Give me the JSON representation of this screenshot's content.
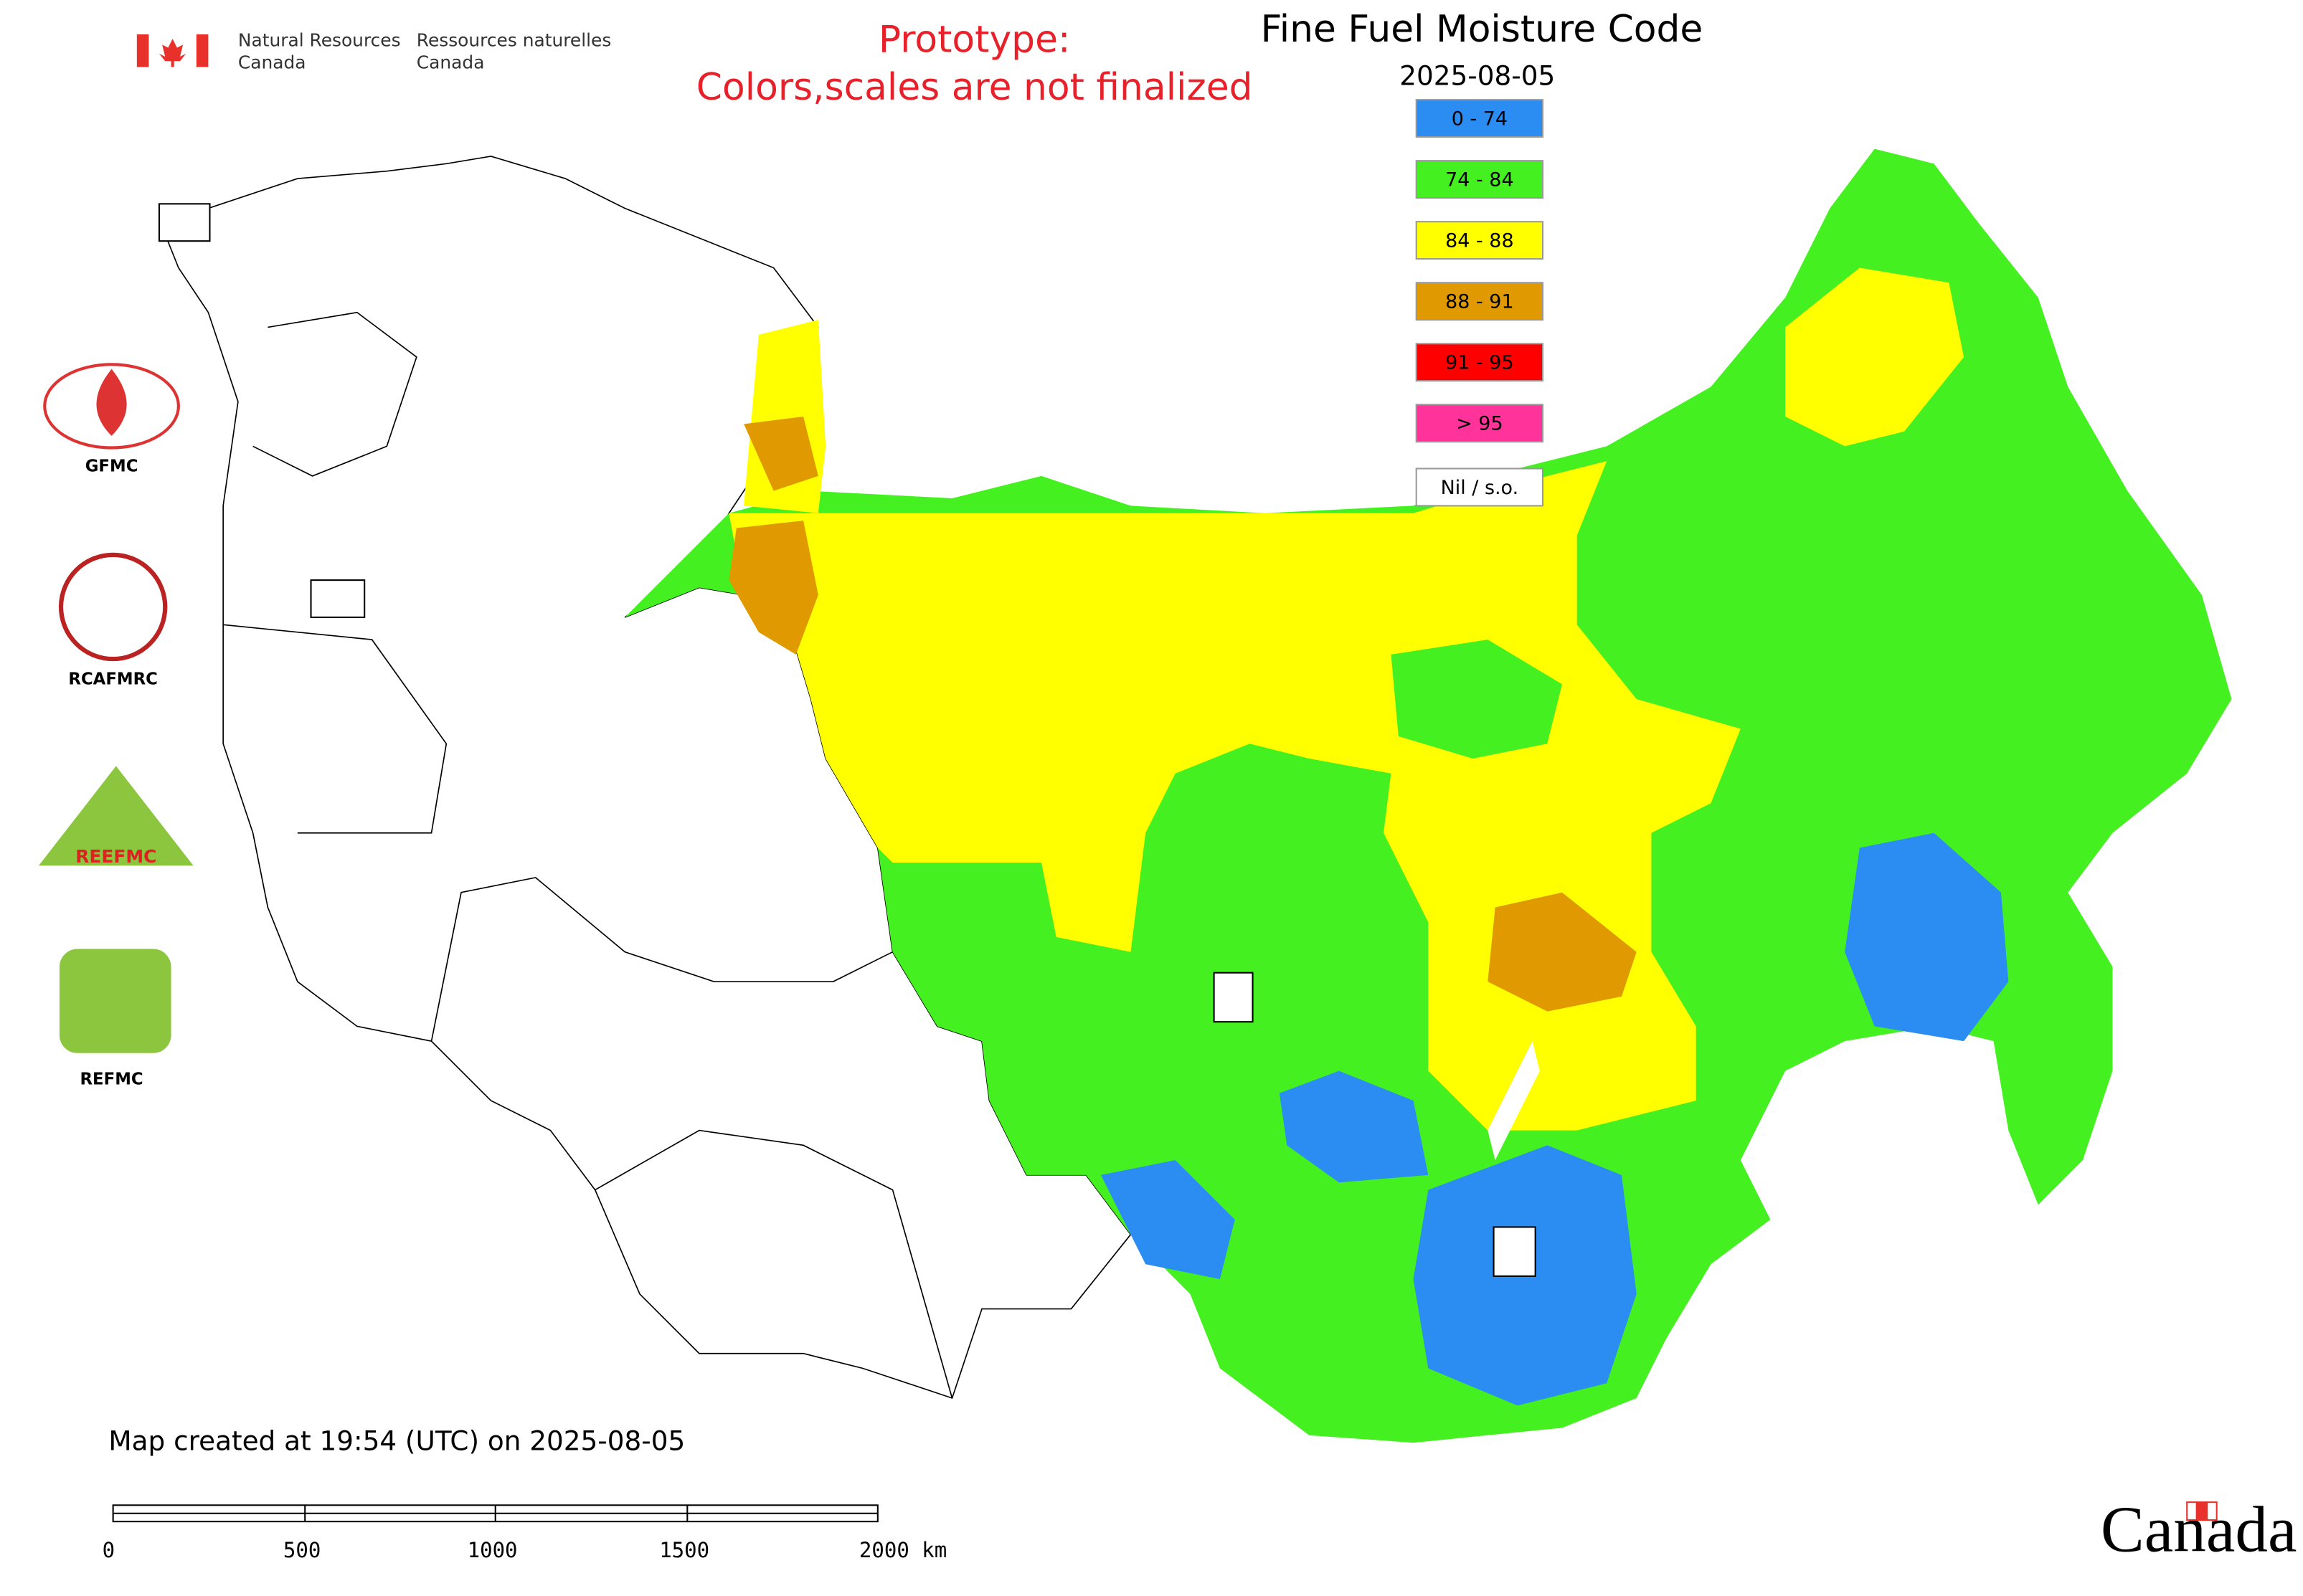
{
  "header": {
    "agency_en": [
      "Natural Resources",
      "Canada"
    ],
    "agency_fr": [
      "Ressources naturelles",
      "Canada"
    ],
    "wordmark": "Canada"
  },
  "notice": [
    "Prototype:",
    "Colors,scales are not finalized"
  ],
  "map": {
    "title": "Fine Fuel Moisture Code",
    "date": "2025-08-05",
    "legend": [
      {
        "label": "0 - 74",
        "color": "#2b8cf2"
      },
      {
        "label": "74 - 84",
        "color": "#44f020"
      },
      {
        "label": "84 - 88",
        "color": "#ffff00"
      },
      {
        "label": "88 - 91",
        "color": "#e09a00"
      },
      {
        "label": "91 - 95",
        "color": "#ff0000"
      },
      {
        "label": "> 95",
        "color": "#ff3399"
      },
      {
        "label": "Nil / s.o.",
        "color": "#ffffff"
      }
    ],
    "logos": [
      "GFMC",
      "RCAFMRC",
      "REEFMC",
      "REFMC"
    ],
    "footer": "Map created at 19:54 (UTC) on 2025-08-05",
    "scale_bar": [
      "0",
      "500",
      "1000",
      "1500",
      "2000 km"
    ]
  }
}
